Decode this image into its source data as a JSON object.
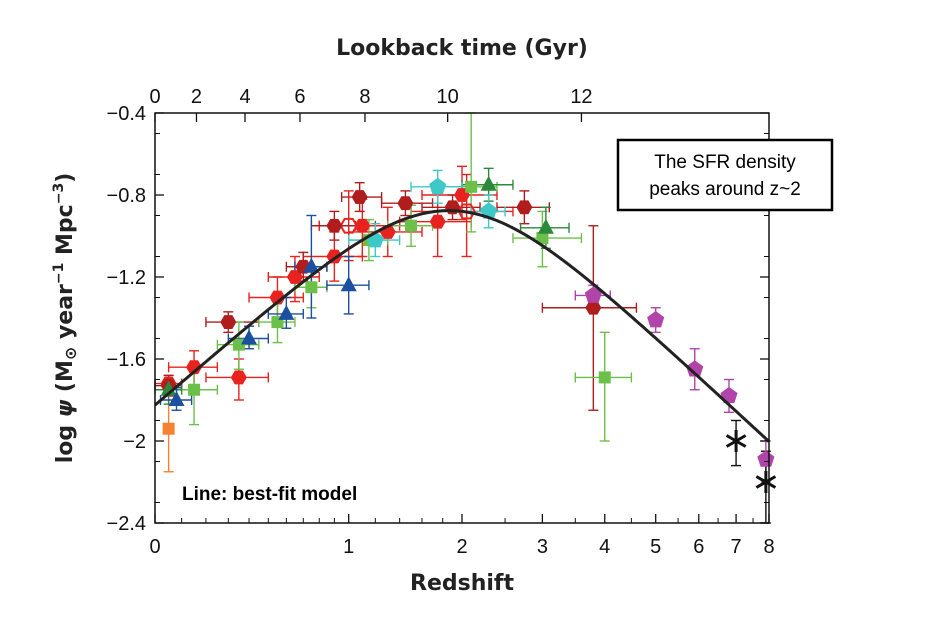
{
  "chart_data": {
    "type": "scatter",
    "title": "",
    "xlabel": "Redshift",
    "x2label": "Lookback time (Gyr)",
    "ylabel_parts": {
      "pre": "log ",
      "psi": "ψ",
      "mid": " (M",
      "sun": "⊙",
      "year": " year",
      "exp1": "−1",
      "mpc": " Mpc",
      "exp3": "−3",
      "close": ")"
    },
    "x_scale": "log(1+z)",
    "xlim": [
      0,
      8
    ],
    "ylim": [
      -2.4,
      -0.4
    ],
    "grid": false,
    "x_ticks": [
      0,
      1,
      2,
      3,
      4,
      5,
      6,
      7,
      8
    ],
    "x_tick_labels": [
      "0",
      "1",
      "2",
      "3",
      "4",
      "5",
      "6",
      "7",
      "8"
    ],
    "y_ticks": [
      -0.4,
      -0.8,
      -1.2,
      -1.6,
      -2.0,
      -2.4
    ],
    "y_tick_labels": [
      "−0.4",
      "−0.8",
      "−1.2",
      "−1.6",
      "−2",
      "−2.4"
    ],
    "top_ticks": [
      {
        "label": "0",
        "z": 0.0
      },
      {
        "label": "2",
        "z": 0.16
      },
      {
        "label": "4",
        "z": 0.38
      },
      {
        "label": "6",
        "z": 0.68
      },
      {
        "label": "8",
        "z": 1.12
      },
      {
        "label": "10",
        "z": 1.85
      },
      {
        "label": "12",
        "z": 3.6
      }
    ],
    "annotations": [
      {
        "lines": [
          "The SFR density",
          "peaks around z~2"
        ],
        "boxed": true,
        "position": "top-right"
      },
      {
        "lines": [
          "Line: best-fit model"
        ],
        "boxed": false,
        "bold": true,
        "position": "bottom-left"
      }
    ],
    "colors": {
      "orange": "#f58231",
      "red": "#e8221e",
      "darkred": "#b01d1d",
      "lightgreen": "#6cc04a",
      "darkgreen": "#2a8a3a",
      "cyan": "#3ec8c8",
      "blue": "#1b4fa0",
      "purple": "#b044a8",
      "black": "#111111",
      "model": "#222222"
    },
    "model_curve": {
      "name": "best-fit model",
      "formula": "0.015 (1+z)^2.7 / (1 + ((1+z)/2.9)^5.6)"
    },
    "series": [
      {
        "marker": "square",
        "color": "orange",
        "points": [
          {
            "x": 0.05,
            "y": -1.94,
            "ylo": -2.15,
            "yhi": -1.76
          }
        ]
      },
      {
        "marker": "hexagon",
        "color": "red",
        "points": [
          {
            "x": 0.05,
            "y": -1.72,
            "xlo": 0.0,
            "xhi": 0.1,
            "ylo": -1.78,
            "yhi": -1.68
          },
          {
            "x": 0.15,
            "y": -1.64,
            "xlo": 0.05,
            "xhi": 0.25,
            "ylo": -1.74,
            "yhi": -1.56
          },
          {
            "x": 0.35,
            "y": -1.69,
            "xlo": 0.2,
            "xhi": 0.5,
            "ylo": -1.8,
            "yhi": -1.6
          },
          {
            "x": 0.65,
            "y": -1.2,
            "xlo": 0.5,
            "xhi": 0.8,
            "ylo": -1.32,
            "yhi": -1.1
          },
          {
            "x": 0.55,
            "y": -1.3,
            "xlo": 0.4,
            "xhi": 0.7,
            "ylo": -1.4,
            "yhi": -1.2
          },
          {
            "x": 0.9,
            "y": -1.1,
            "xlo": 0.7,
            "xhi": 1.1,
            "ylo": -1.22,
            "yhi": -0.98
          },
          {
            "x": 1.1,
            "y": -0.95,
            "xlo": 0.8,
            "xhi": 1.4,
            "ylo": -1.1,
            "yhi": -0.82
          },
          {
            "x": 1.3,
            "y": -0.98,
            "xlo": 1.0,
            "xhi": 1.6,
            "ylo": -1.1,
            "yhi": -0.86
          },
          {
            "x": 1.75,
            "y": -0.93,
            "xlo": 1.4,
            "xhi": 2.1,
            "ylo": -1.1,
            "yhi": -0.78
          },
          {
            "x": 2.0,
            "y": -0.8,
            "xlo": 1.6,
            "xhi": 2.4,
            "ylo": -0.92,
            "yhi": -0.66
          }
        ]
      },
      {
        "marker": "hexagon-open",
        "color": "red",
        "points": [
          {
            "x": 1.0,
            "y": -0.95,
            "xlo": 0.8,
            "xhi": 1.2,
            "ylo": -1.12,
            "yhi": -0.78
          },
          {
            "x": 2.05,
            "y": -0.88,
            "xlo": 1.5,
            "xhi": 2.6,
            "ylo": -1.1,
            "yhi": -0.7
          }
        ]
      },
      {
        "marker": "hexagon",
        "color": "darkred",
        "points": [
          {
            "x": 0.05,
            "y": -1.73,
            "xlo": 0.0,
            "xhi": 0.1,
            "ylo": -1.78,
            "yhi": -1.68
          },
          {
            "x": 0.3,
            "y": -1.42,
            "xlo": 0.2,
            "xhi": 0.45,
            "ylo": -1.47,
            "yhi": -1.37
          },
          {
            "x": 0.7,
            "y": -1.15,
            "xlo": 0.6,
            "xhi": 0.85,
            "ylo": -1.22,
            "yhi": -1.08
          },
          {
            "x": 0.9,
            "y": -0.95,
            "xlo": 0.75,
            "xhi": 1.05,
            "ylo": -1.02,
            "yhi": -0.88
          },
          {
            "x": 1.08,
            "y": -0.81,
            "xlo": 0.95,
            "xhi": 1.25,
            "ylo": -0.88,
            "yhi": -0.74
          },
          {
            "x": 1.45,
            "y": -0.84,
            "xlo": 1.25,
            "xhi": 1.7,
            "ylo": -0.9,
            "yhi": -0.78
          },
          {
            "x": 1.9,
            "y": -0.86,
            "xlo": 1.6,
            "xhi": 2.2,
            "ylo": -0.92,
            "yhi": -0.8
          },
          {
            "x": 2.75,
            "y": -0.86,
            "xlo": 2.4,
            "xhi": 3.1,
            "ylo": -0.94,
            "yhi": -0.78
          },
          {
            "x": 3.8,
            "y": -1.35,
            "xlo": 3.0,
            "xhi": 4.6,
            "ylo": -1.85,
            "yhi": -0.95
          }
        ]
      },
      {
        "marker": "square",
        "color": "lightgreen",
        "points": [
          {
            "x": 0.15,
            "y": -1.75,
            "xlo": 0.05,
            "xhi": 0.25,
            "ylo": -1.92,
            "yhi": -1.62
          },
          {
            "x": 0.35,
            "y": -1.53,
            "xlo": 0.25,
            "xhi": 0.45,
            "ylo": -1.65,
            "yhi": -1.42
          },
          {
            "x": 0.55,
            "y": -1.42,
            "xlo": 0.45,
            "xhi": 0.65,
            "ylo": -1.52,
            "yhi": -1.32
          },
          {
            "x": 0.75,
            "y": -1.25,
            "xlo": 0.65,
            "xhi": 0.85,
            "ylo": -1.35,
            "yhi": -1.15
          },
          {
            "x": 1.15,
            "y": -1.02,
            "xlo": 1.0,
            "xhi": 1.3,
            "ylo": -1.12,
            "yhi": -0.92
          },
          {
            "x": 1.5,
            "y": -0.95,
            "xlo": 1.3,
            "xhi": 1.7,
            "ylo": -1.05,
            "yhi": -0.85
          },
          {
            "x": 2.1,
            "y": -0.76,
            "xlo": 1.8,
            "xhi": 2.4,
            "ylo": -0.98,
            "yhi": -0.4
          },
          {
            "x": 3.0,
            "y": -1.01,
            "xlo": 2.6,
            "xhi": 3.6,
            "ylo": -1.15,
            "yhi": -0.88
          },
          {
            "x": 4.0,
            "y": -1.69,
            "xlo": 3.5,
            "xhi": 4.5,
            "ylo": -2.0,
            "yhi": -1.47
          }
        ]
      },
      {
        "marker": "triangle",
        "color": "darkgreen",
        "points": [
          {
            "x": 0.05,
            "y": -1.75,
            "xlo": 0.0,
            "xhi": 0.1,
            "ylo": -1.82,
            "yhi": -1.7
          },
          {
            "x": 2.3,
            "y": -0.75,
            "xlo": 2.0,
            "xhi": 2.6,
            "ylo": -0.83,
            "yhi": -0.67
          },
          {
            "x": 3.05,
            "y": -0.96,
            "xlo": 2.7,
            "xhi": 3.4,
            "ylo": -1.06,
            "yhi": -0.86
          }
        ]
      },
      {
        "marker": "pentagon",
        "color": "cyan",
        "points": [
          {
            "x": 1.2,
            "y": -1.02,
            "xlo": 1.0,
            "xhi": 1.4,
            "ylo": -1.1,
            "yhi": -0.94
          },
          {
            "x": 1.75,
            "y": -0.76,
            "xlo": 1.5,
            "xhi": 2.0,
            "ylo": -0.84,
            "yhi": -0.68
          },
          {
            "x": 2.3,
            "y": -0.88,
            "xlo": 2.1,
            "xhi": 2.5,
            "ylo": -0.96,
            "yhi": -0.8
          }
        ]
      },
      {
        "marker": "triangle",
        "color": "blue",
        "points": [
          {
            "x": 0.08,
            "y": -1.8,
            "xlo": 0.02,
            "xhi": 0.14,
            "ylo": -1.85,
            "yhi": -1.74
          },
          {
            "x": 0.4,
            "y": -1.5,
            "xlo": 0.3,
            "xhi": 0.5,
            "ylo": -1.55,
            "yhi": -1.44
          },
          {
            "x": 0.6,
            "y": -1.38,
            "xlo": 0.5,
            "xhi": 0.7,
            "ylo": -1.45,
            "yhi": -1.3
          },
          {
            "x": 0.75,
            "y": -1.15,
            "xlo": 0.65,
            "xhi": 0.85,
            "ylo": -1.4,
            "yhi": -0.9
          },
          {
            "x": 1.0,
            "y": -1.24,
            "xlo": 0.85,
            "xhi": 1.15,
            "ylo": -1.38,
            "yhi": -1.1
          }
        ]
      },
      {
        "marker": "pentagon",
        "color": "purple",
        "points": [
          {
            "x": 3.8,
            "y": -1.29,
            "xlo": 3.5,
            "xhi": 4.1,
            "ylo": -1.34,
            "yhi": -1.24
          },
          {
            "x": 5.0,
            "y": -1.41,
            "ylo": -1.47,
            "yhi": -1.35
          },
          {
            "x": 5.9,
            "y": -1.65,
            "ylo": -1.75,
            "yhi": -1.55
          },
          {
            "x": 6.8,
            "y": -1.78,
            "ylo": -1.86,
            "yhi": -1.7
          },
          {
            "x": 7.9,
            "y": -2.09,
            "ylo": -2.2,
            "yhi": -2.0
          }
        ]
      },
      {
        "marker": "star",
        "color": "black",
        "points": [
          {
            "x": 7.0,
            "y": -2.0,
            "ylo": -2.12,
            "yhi": -1.9
          },
          {
            "x": 7.9,
            "y": -2.2,
            "ylo": -2.4,
            "yhi": -2.05
          }
        ]
      }
    ]
  }
}
